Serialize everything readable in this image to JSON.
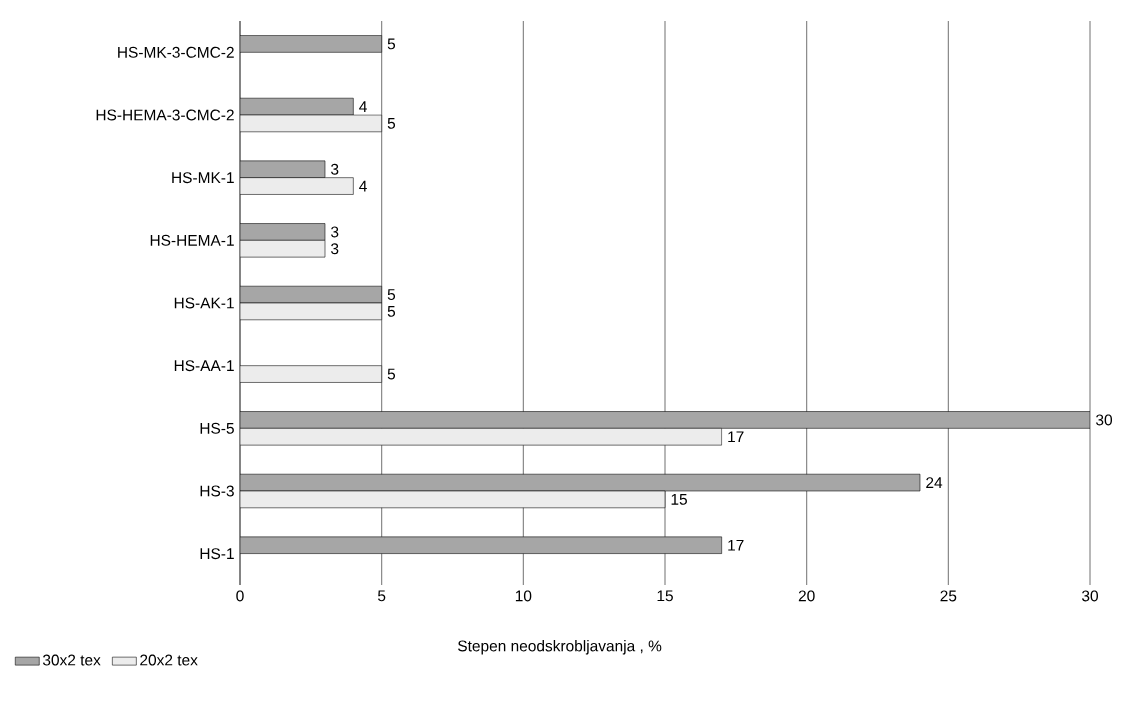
{
  "chart_data": {
    "type": "bar",
    "orientation": "horizontal",
    "categories": [
      "HS-MK-3-CMC-2",
      "HS-HEMA-3-CMC-2",
      "HS-MK-1",
      "HS-HEMA-1",
      "HS-AK-1",
      "HS-AA-1",
      "HS-5",
      "HS-3",
      "HS-1"
    ],
    "series": [
      {
        "name": "30x2 tex",
        "color": "#a6a6a6",
        "values": [
          5,
          4,
          3,
          3,
          5,
          null,
          30,
          24,
          17
        ]
      },
      {
        "name": "20x2 tex",
        "color": "#ececec",
        "values": [
          null,
          5,
          4,
          3,
          5,
          5,
          17,
          15,
          null
        ]
      }
    ],
    "xlabel": "Stepen neodskrobljavanja , %",
    "xlim": [
      0,
      30
    ],
    "xticks": [
      0,
      5,
      10,
      15,
      20,
      25,
      30
    ],
    "grid": "x",
    "legend": "bottom left",
    "data_labels": true
  }
}
